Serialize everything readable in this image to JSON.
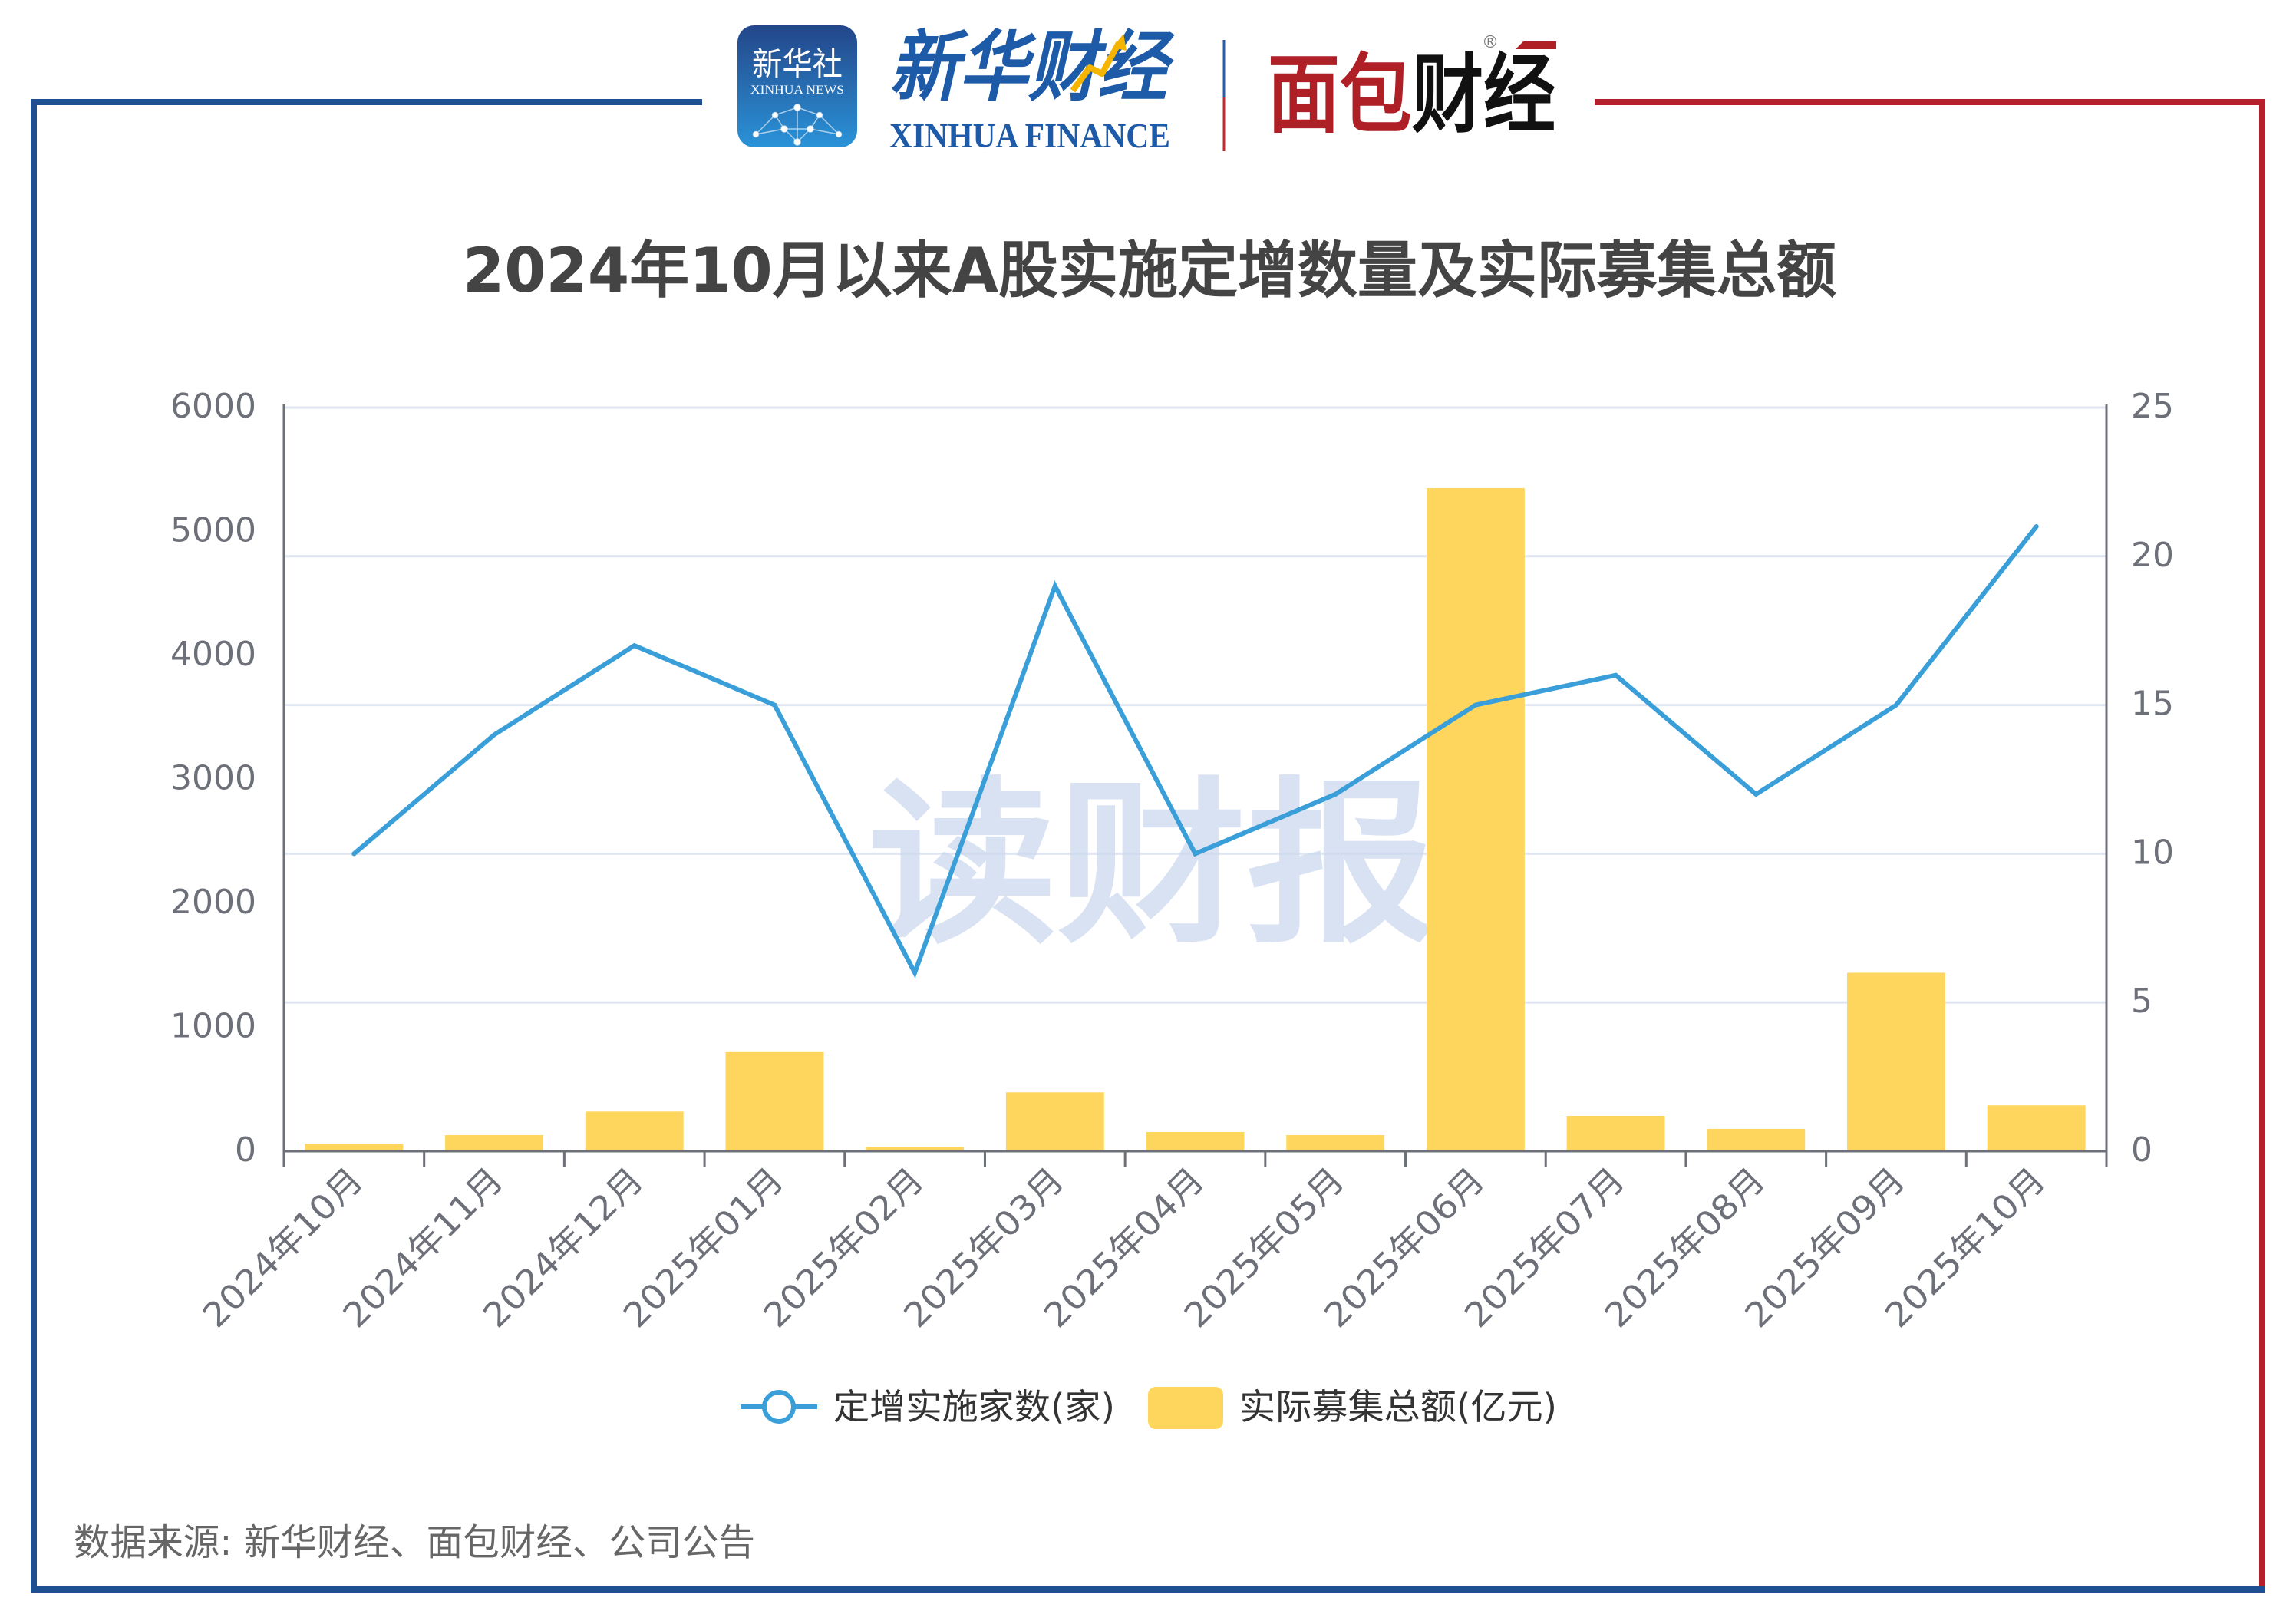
{
  "header": {
    "xinhua_app_icon": {
      "title": "新华社",
      "subtitle": "XINHUA NEWS"
    },
    "xinhua_finance_logo": {
      "title": "新华财经",
      "subtitle": "XINHUA FINANCE"
    },
    "mianbao_logo": {
      "red_part": "面包",
      "black_part": "财经",
      "registered_mark": "®"
    }
  },
  "theme": {
    "frame_left_color": "#1f4f91",
    "frame_right_color": "#b51f29",
    "bar_color": "#fed65d",
    "line_color": "#3a9fd8",
    "grid_color": "#e0e6f1",
    "axis_color": "#6e7079",
    "title_color": "#444444",
    "legend_text_color": "#333333",
    "footer_text_color": "#666666",
    "watermark_color": "#c9d6ec"
  },
  "watermark": {
    "text": "读财报"
  },
  "chart_data": {
    "type": "bar",
    "title": "2024年10月以来A股实施定增数量及实际募集总额",
    "categories": [
      "2024年10月",
      "2024年11月",
      "2024年12月",
      "2025年01月",
      "2025年02月",
      "2025年03月",
      "2025年04月",
      "2025年05月",
      "2025年06月",
      "2025年07月",
      "2025年08月",
      "2025年09月",
      "2025年10月"
    ],
    "series": [
      {
        "name": "定增实施家数(家)",
        "type": "line",
        "y_axis": "right",
        "values": [
          10,
          14,
          17,
          15,
          6,
          19,
          10,
          12,
          15,
          16,
          12,
          15,
          21
        ]
      },
      {
        "name": "实际募集总额(亿元)",
        "type": "bar",
        "y_axis": "left",
        "values": [
          60,
          130,
          320,
          800,
          35,
          475,
          155,
          130,
          5350,
          285,
          180,
          1440,
          370
        ]
      }
    ],
    "xlabel": "",
    "ylabel": "",
    "y_left": {
      "ylim": [
        0,
        6000
      ],
      "ticks": [
        "0",
        "1000",
        "2000",
        "3000",
        "4000",
        "5000",
        "6000"
      ]
    },
    "y_right": {
      "ylim": [
        0,
        25
      ],
      "ticks": [
        "0",
        "5",
        "10",
        "15",
        "20",
        "25"
      ]
    },
    "grid": true,
    "legend": [
      "定增实施家数(家)",
      "实际募集总额(亿元)"
    ],
    "legend_position": "bottom",
    "x_label_rotation": -45
  },
  "footer": {
    "source": "数据来源: 新华财经、面包财经、公司公告"
  }
}
